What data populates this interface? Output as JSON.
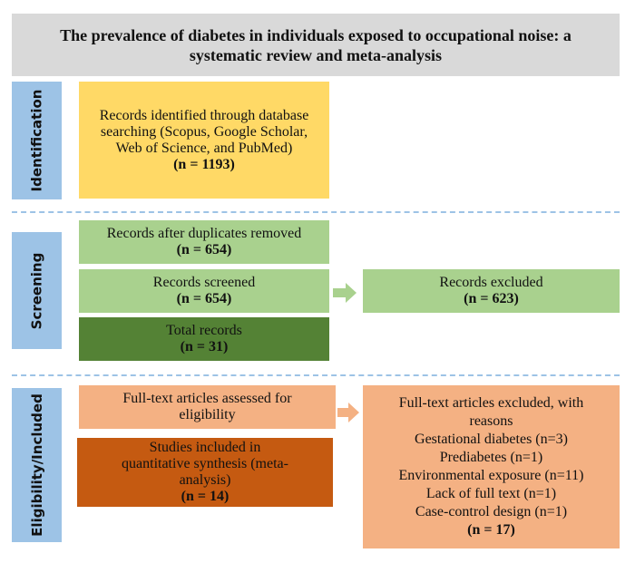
{
  "title": "The prevalence of diabetes in individuals exposed to occupational noise: a systematic review and meta-analysis",
  "stages": {
    "identification": "Identification",
    "screening": "Screening",
    "eligibility": "Eligibility/Included"
  },
  "identified": {
    "text": "Records identified through database searching (Scopus, Google Scholar, Web of Science, and PubMed)",
    "n": "(n = 1193)"
  },
  "duplicates": {
    "text": "Records after duplicates removed",
    "n": "(n = 654)"
  },
  "screened": {
    "text": "Records screened",
    "n": "(n = 654)"
  },
  "excluded": {
    "text": "Records excluded",
    "n": "(n = 623)"
  },
  "total": {
    "text": "Total records",
    "n": "(n = 31)"
  },
  "fulltext": {
    "text": "Full-text articles assessed for eligibility"
  },
  "included": {
    "text": "Studies included in quantitative synthesis (meta-analysis)",
    "n": "(n = 14)"
  },
  "fulltext_excluded": {
    "text": "Full-text articles excluded, with reasons",
    "reasons": [
      "Gestational diabetes (n=3)",
      "Prediabetes (n=1)",
      "Environmental exposure (n=11)",
      "Lack of full text (n=1)",
      "Case-control design (n=1)"
    ],
    "n": "(n = 17)"
  },
  "colors": {
    "title": "#d9d9d9",
    "stage": "#9dc3e6",
    "identified": "#ffd966",
    "screening": "#a9d18e",
    "total": "#548235",
    "eligibility": "#f4b183",
    "included": "#c55a11"
  }
}
